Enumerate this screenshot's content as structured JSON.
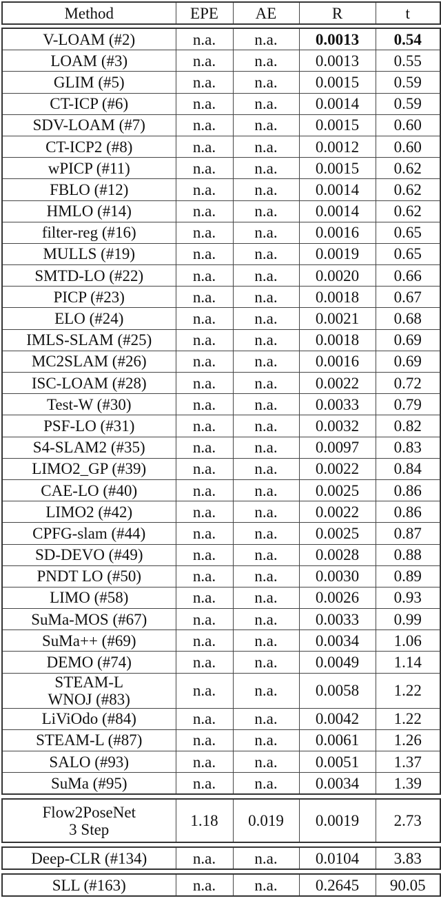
{
  "header": [
    "Method",
    "EPE",
    "AE",
    "R",
    "t"
  ],
  "groups": [
    [
      {
        "method": "V-LOAM (#2)",
        "epe": "n.a.",
        "ae": "n.a.",
        "r": "0.0013",
        "t": "0.54",
        "bold": true
      },
      {
        "method": "LOAM (#3)",
        "epe": "n.a.",
        "ae": "n.a.",
        "r": "0.0013",
        "t": "0.55"
      },
      {
        "method": "GLIM (#5)",
        "epe": "n.a.",
        "ae": "n.a.",
        "r": "0.0015",
        "t": "0.59"
      },
      {
        "method": "CT-ICP (#6)",
        "epe": "n.a.",
        "ae": "n.a.",
        "r": "0.0014",
        "t": "0.59"
      },
      {
        "method": "SDV-LOAM (#7)",
        "epe": "n.a.",
        "ae": "n.a.",
        "r": "0.0015",
        "t": "0.60"
      },
      {
        "method": "CT-ICP2 (#8)",
        "epe": "n.a.",
        "ae": "n.a.",
        "r": "0.0012",
        "t": "0.60"
      },
      {
        "method": "wPICP (#11)",
        "epe": "n.a.",
        "ae": "n.a.",
        "r": "0.0015",
        "t": "0.62"
      },
      {
        "method": "FBLO (#12)",
        "epe": "n.a.",
        "ae": "n.a.",
        "r": "0.0014",
        "t": "0.62"
      },
      {
        "method": "HMLO (#14)",
        "epe": "n.a.",
        "ae": "n.a.",
        "r": "0.0014",
        "t": "0.62"
      },
      {
        "method": "filter-reg (#16)",
        "epe": "n.a.",
        "ae": "n.a.",
        "r": "0.0016",
        "t": "0.65"
      },
      {
        "method": "MULLS (#19)",
        "epe": "n.a.",
        "ae": "n.a.",
        "r": "0.0019",
        "t": "0.65"
      },
      {
        "method": "SMTD-LO (#22)",
        "epe": "n.a.",
        "ae": "n.a.",
        "r": "0.0020",
        "t": "0.66"
      },
      {
        "method": "PICP (#23)",
        "epe": "n.a.",
        "ae": "n.a.",
        "r": "0.0018",
        "t": "0.67"
      },
      {
        "method": "ELO (#24)",
        "epe": "n.a.",
        "ae": "n.a.",
        "r": "0.0021",
        "t": "0.68"
      },
      {
        "method": "IMLS-SLAM (#25)",
        "epe": "n.a.",
        "ae": "n.a.",
        "r": "0.0018",
        "t": "0.69"
      },
      {
        "method": "MC2SLAM (#26)",
        "epe": "n.a.",
        "ae": "n.a.",
        "r": "0.0016",
        "t": "0.69"
      },
      {
        "method": "ISC-LOAM (#28)",
        "epe": "n.a.",
        "ae": "n.a.",
        "r": "0.0022",
        "t": "0.72"
      },
      {
        "method": "Test-W (#30)",
        "epe": "n.a.",
        "ae": "n.a.",
        "r": "0.0033",
        "t": "0.79"
      },
      {
        "method": "PSF-LO (#31)",
        "epe": "n.a.",
        "ae": "n.a.",
        "r": "0.0032",
        "t": "0.82"
      },
      {
        "method": "S4-SLAM2 (#35)",
        "epe": "n.a.",
        "ae": "n.a.",
        "r": "0.0097",
        "t": "0.83"
      },
      {
        "method": "LIMO2_GP (#39)",
        "epe": "n.a.",
        "ae": "n.a.",
        "r": "0.0022",
        "t": "0.84"
      },
      {
        "method": "CAE-LO (#40)",
        "epe": "n.a.",
        "ae": "n.a.",
        "r": "0.0025",
        "t": "0.86"
      },
      {
        "method": "LIMO2 (#42)",
        "epe": "n.a.",
        "ae": "n.a.",
        "r": "0.0022",
        "t": "0.86"
      },
      {
        "method": "CPFG-slam (#44)",
        "epe": "n.a.",
        "ae": "n.a.",
        "r": "0.0025",
        "t": "0.87"
      },
      {
        "method": "SD-DEVO (#49)",
        "epe": "n.a.",
        "ae": "n.a.",
        "r": "0.0028",
        "t": "0.88"
      },
      {
        "method": "PNDT LO (#50)",
        "epe": "n.a.",
        "ae": "n.a.",
        "r": "0.0030",
        "t": "0.89"
      },
      {
        "method": "LIMO (#58)",
        "epe": "n.a.",
        "ae": "n.a.",
        "r": "0.0026",
        "t": "0.93"
      },
      {
        "method": "SuMa-MOS (#67)",
        "epe": "n.a.",
        "ae": "n.a.",
        "r": "0.0033",
        "t": "0.99"
      },
      {
        "method": "SuMa++ (#69)",
        "epe": "n.a.",
        "ae": "n.a.",
        "r": "0.0034",
        "t": "1.06"
      },
      {
        "method": "DEMO (#74)",
        "epe": "n.a.",
        "ae": "n.a.",
        "r": "0.0049",
        "t": "1.14"
      },
      {
        "method": "STEAM-L\nWNOJ (#83)",
        "epe": "n.a.",
        "ae": "n.a.",
        "r": "0.0058",
        "t": "1.22"
      },
      {
        "method": "LiViOdo (#84)",
        "epe": "n.a.",
        "ae": "n.a.",
        "r": "0.0042",
        "t": "1.22"
      },
      {
        "method": "STEAM-L (#87)",
        "epe": "n.a.",
        "ae": "n.a.",
        "r": "0.0061",
        "t": "1.26"
      },
      {
        "method": "SALO (#93)",
        "epe": "n.a.",
        "ae": "n.a.",
        "r": "0.0051",
        "t": "1.37"
      },
      {
        "method": "SuMa (#95)",
        "epe": "n.a.",
        "ae": "n.a.",
        "r": "0.0034",
        "t": "1.39"
      }
    ],
    [
      {
        "method": "Flow2PoseNet\n3 Step",
        "epe": "1.18",
        "ae": "0.019",
        "r": "0.0019",
        "t": "2.73"
      }
    ],
    [
      {
        "method": "Deep-CLR (#134)",
        "epe": "n.a.",
        "ae": "n.a.",
        "r": "0.0104",
        "t": "3.83"
      }
    ],
    [
      {
        "method": "SLL (#163)",
        "epe": "n.a.",
        "ae": "n.a.",
        "r": "0.2645",
        "t": "90.05"
      }
    ]
  ]
}
